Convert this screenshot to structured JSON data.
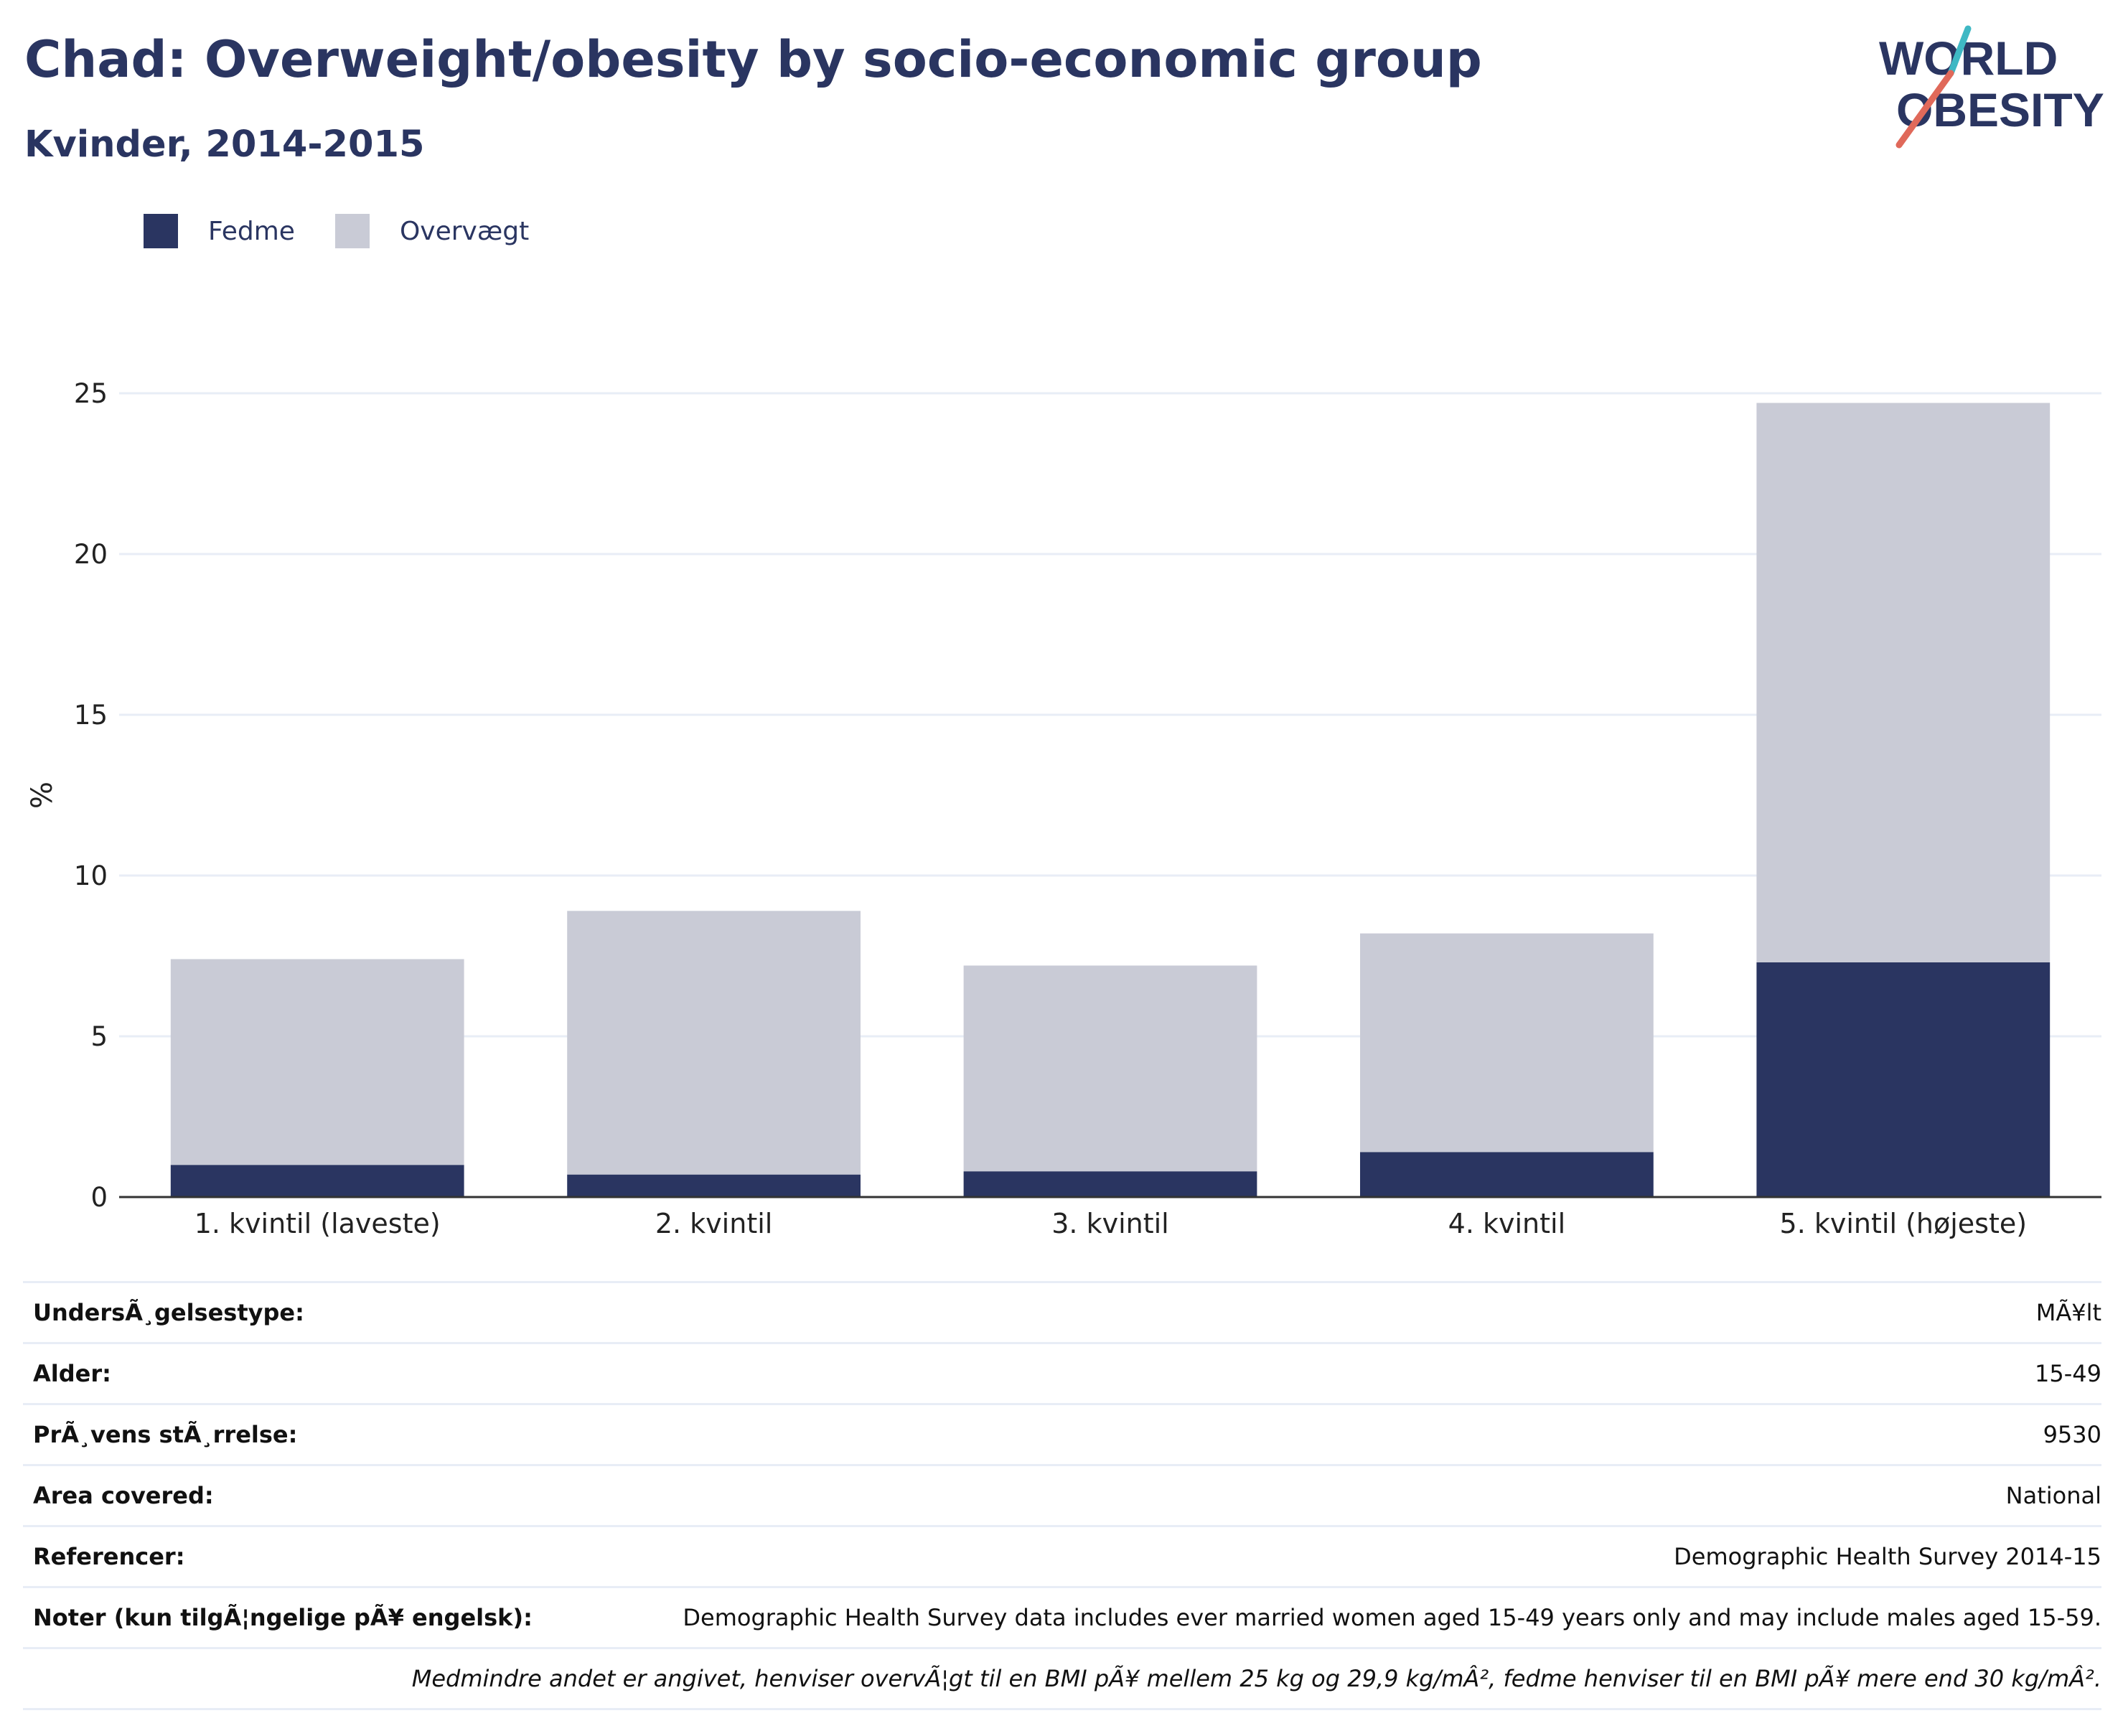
{
  "header": {
    "title": "Chad: Overweight/obesity by socio-economic group",
    "subtitle": "Kvinder, 2014-2015"
  },
  "logo": {
    "line1": "WORLD",
    "line2": "OBESITY"
  },
  "colors": {
    "fedme": "#2a3561",
    "overvaegt": "#c9cbd6",
    "grid": "#e8edf6",
    "axis": "#333333",
    "text": "#2a3561"
  },
  "legend": {
    "items": [
      {
        "label": "Fedme"
      },
      {
        "label": "Overvægt"
      }
    ]
  },
  "chart_data": {
    "type": "bar",
    "stacked": true,
    "categories": [
      "1. kvintil (laveste)",
      "2. kvintil",
      "3. kvintil",
      "4. kvintil",
      "5. kvintil (højeste)"
    ],
    "series": [
      {
        "name": "Fedme",
        "values": [
          1.0,
          0.7,
          0.8,
          1.4,
          7.3
        ]
      },
      {
        "name": "Overvægt",
        "values": [
          6.4,
          8.2,
          6.4,
          6.8,
          17.4
        ]
      }
    ],
    "ylabel": "%",
    "ylim": [
      0,
      25
    ],
    "yticks": [
      0,
      5,
      10,
      15,
      20,
      25
    ],
    "grid": true,
    "legend_position": "top-left"
  },
  "info": {
    "rows": [
      {
        "key": "UndersÃ¸gelsestype:",
        "value": "MÃ¥lt"
      },
      {
        "key": "Alder:",
        "value": "15-49"
      },
      {
        "key": "PrÃ¸vens stÃ¸rrelse:",
        "value": "9530"
      },
      {
        "key": "Area covered:",
        "value": "National"
      },
      {
        "key": "Referencer:",
        "value": "Demographic Health Survey 2014-15"
      },
      {
        "key": "Noter (kun tilgÃ¦ngelige pÃ¥ engelsk):",
        "value": "Demographic Health Survey data includes ever married women aged 15-49 years only and may include males aged 15-59."
      }
    ],
    "footnote": "Medmindre andet er angivet, henviser overvÃ¦gt til en BMI pÃ¥ mellem 25 kg og 29,9 kg/mÂ², fedme henviser til en BMI pÃ¥ mere end 30 kg/mÂ²."
  }
}
